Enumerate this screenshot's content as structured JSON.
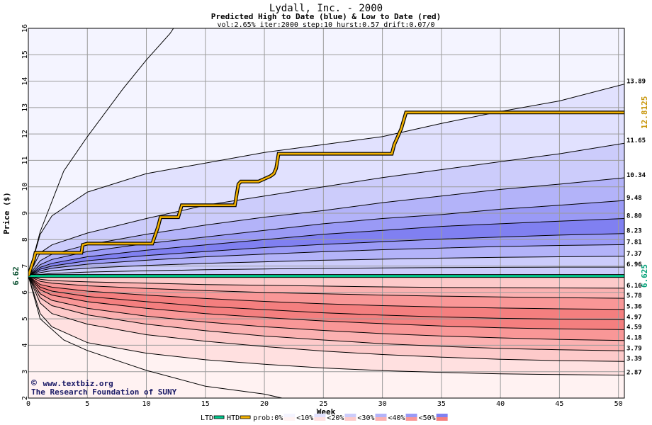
{
  "chart_data": {
    "type": "area",
    "title": "Lydall, Inc. - 2000",
    "subtitle": "Predicted High to Date (blue) &  Low to Date (red)",
    "params": "vol:2.65% iter:2000 step:10 hurst:0.57 drift:0.07/0",
    "xlabel": "Week",
    "ylabel": "Price ($)",
    "xlim": [
      0,
      50.5
    ],
    "ylim": [
      2,
      16
    ],
    "x_ticks": [
      0,
      5,
      10,
      15,
      20,
      25,
      30,
      35,
      40,
      45,
      50
    ],
    "y_ticks": [
      2,
      3,
      4,
      5,
      6,
      7,
      8,
      9,
      10,
      11,
      12,
      13,
      14,
      15,
      16
    ],
    "start_price": 6.625,
    "start_label": "6.62",
    "colors": {
      "high_bands": [
        "#f4f4ff",
        "#e1e1fe",
        "#ccccfb",
        "#b3b3f9",
        "#9a9af6",
        "#8080f1"
      ],
      "low_bands": [
        "#fff2f2",
        "#ffe0e0",
        "#fdcaca",
        "#fbb1b1",
        "#f99797",
        "#f47f7f"
      ],
      "ltd_line": "#00c88c",
      "htd_line": "#f2b100",
      "grid": "#9b9b9b",
      "credit": "#1a1a66"
    },
    "high_curves": [
      {
        "label": "13.89",
        "points": [
          [
            0,
            6.625
          ],
          [
            1,
            8.2
          ],
          [
            2,
            8.9
          ],
          [
            5,
            9.8
          ],
          [
            10,
            10.5
          ],
          [
            15,
            10.9
          ],
          [
            20,
            11.3
          ],
          [
            25,
            11.6
          ],
          [
            30,
            11.9
          ],
          [
            35,
            12.4
          ],
          [
            40,
            12.85
          ],
          [
            45,
            13.25
          ],
          [
            50.5,
            13.89
          ]
        ]
      },
      {
        "label": "11.65",
        "points": [
          [
            0,
            6.625
          ],
          [
            1,
            7.5
          ],
          [
            2,
            7.8
          ],
          [
            5,
            8.25
          ],
          [
            10,
            8.8
          ],
          [
            15,
            9.3
          ],
          [
            20,
            9.65
          ],
          [
            25,
            10.0
          ],
          [
            30,
            10.35
          ],
          [
            35,
            10.65
          ],
          [
            40,
            10.95
          ],
          [
            45,
            11.25
          ],
          [
            50.5,
            11.65
          ]
        ]
      },
      {
        "label": "10.34",
        "points": [
          [
            0,
            6.625
          ],
          [
            1,
            7.2
          ],
          [
            2,
            7.45
          ],
          [
            5,
            7.8
          ],
          [
            10,
            8.2
          ],
          [
            15,
            8.55
          ],
          [
            20,
            8.85
          ],
          [
            25,
            9.1
          ],
          [
            30,
            9.4
          ],
          [
            35,
            9.65
          ],
          [
            40,
            9.9
          ],
          [
            45,
            10.1
          ],
          [
            50.5,
            10.34
          ]
        ]
      },
      {
        "label": "9.48",
        "points": [
          [
            0,
            6.625
          ],
          [
            1,
            7.05
          ],
          [
            2,
            7.25
          ],
          [
            5,
            7.55
          ],
          [
            10,
            7.85
          ],
          [
            15,
            8.1
          ],
          [
            20,
            8.35
          ],
          [
            25,
            8.6
          ],
          [
            30,
            8.8
          ],
          [
            35,
            8.95
          ],
          [
            40,
            9.15
          ],
          [
            45,
            9.3
          ],
          [
            50.5,
            9.48
          ]
        ]
      },
      {
        "label": "8.80",
        "points": [
          [
            0,
            6.625
          ],
          [
            1,
            6.95
          ],
          [
            2,
            7.1
          ],
          [
            5,
            7.35
          ],
          [
            10,
            7.6
          ],
          [
            15,
            7.8
          ],
          [
            20,
            8.0
          ],
          [
            25,
            8.2
          ],
          [
            30,
            8.35
          ],
          [
            35,
            8.5
          ],
          [
            40,
            8.6
          ],
          [
            45,
            8.7
          ],
          [
            50.5,
            8.8
          ]
        ]
      },
      {
        "label": "8.23",
        "points": [
          [
            0,
            6.625
          ],
          [
            1,
            6.88
          ],
          [
            2,
            7.0
          ],
          [
            5,
            7.2
          ],
          [
            10,
            7.4
          ],
          [
            15,
            7.55
          ],
          [
            20,
            7.7
          ],
          [
            25,
            7.82
          ],
          [
            30,
            7.92
          ],
          [
            35,
            8.02
          ],
          [
            40,
            8.1
          ],
          [
            45,
            8.17
          ],
          [
            50.5,
            8.23
          ]
        ]
      },
      {
        "label": "7.81",
        "points": [
          [
            0,
            6.625
          ],
          [
            1,
            6.82
          ],
          [
            2,
            6.92
          ],
          [
            5,
            7.07
          ],
          [
            10,
            7.22
          ],
          [
            15,
            7.35
          ],
          [
            20,
            7.45
          ],
          [
            25,
            7.54
          ],
          [
            30,
            7.62
          ],
          [
            35,
            7.68
          ],
          [
            40,
            7.74
          ],
          [
            45,
            7.78
          ],
          [
            50.5,
            7.81
          ]
        ]
      },
      {
        "label": "7.37",
        "points": [
          [
            0,
            6.625
          ],
          [
            1,
            6.75
          ],
          [
            2,
            6.82
          ],
          [
            5,
            6.92
          ],
          [
            10,
            7.02
          ],
          [
            15,
            7.1
          ],
          [
            20,
            7.16
          ],
          [
            25,
            7.22
          ],
          [
            30,
            7.26
          ],
          [
            35,
            7.3
          ],
          [
            40,
            7.33
          ],
          [
            45,
            7.35
          ],
          [
            50.5,
            7.37
          ]
        ]
      },
      {
        "label": "6.96",
        "points": [
          [
            0,
            6.625
          ],
          [
            1,
            6.68
          ],
          [
            2,
            6.72
          ],
          [
            5,
            6.77
          ],
          [
            10,
            6.82
          ],
          [
            15,
            6.86
          ],
          [
            20,
            6.89
          ],
          [
            25,
            6.91
          ],
          [
            30,
            6.93
          ],
          [
            35,
            6.94
          ],
          [
            40,
            6.95
          ],
          [
            45,
            6.96
          ],
          [
            50.5,
            6.96
          ]
        ]
      }
    ],
    "low_curves": [
      {
        "label": "6.16",
        "points": [
          [
            0,
            6.625
          ],
          [
            1,
            6.5
          ],
          [
            2,
            6.45
          ],
          [
            5,
            6.4
          ],
          [
            10,
            6.35
          ],
          [
            15,
            6.3
          ],
          [
            20,
            6.27
          ],
          [
            25,
            6.24
          ],
          [
            30,
            6.21
          ],
          [
            35,
            6.19
          ],
          [
            40,
            6.18
          ],
          [
            45,
            6.17
          ],
          [
            50.5,
            6.16
          ]
        ]
      },
      {
        "label": "5.78",
        "points": [
          [
            0,
            6.625
          ],
          [
            1,
            6.42
          ],
          [
            2,
            6.35
          ],
          [
            5,
            6.25
          ],
          [
            10,
            6.15
          ],
          [
            15,
            6.07
          ],
          [
            20,
            6.0
          ],
          [
            25,
            5.95
          ],
          [
            30,
            5.9
          ],
          [
            35,
            5.86
          ],
          [
            40,
            5.83
          ],
          [
            45,
            5.8
          ],
          [
            50.5,
            5.78
          ]
        ]
      },
      {
        "label": "5.36",
        "points": [
          [
            0,
            6.625
          ],
          [
            1,
            6.3
          ],
          [
            2,
            6.2
          ],
          [
            5,
            6.05
          ],
          [
            10,
            5.9
          ],
          [
            15,
            5.77
          ],
          [
            20,
            5.66
          ],
          [
            25,
            5.57
          ],
          [
            30,
            5.5
          ],
          [
            35,
            5.45
          ],
          [
            40,
            5.41
          ],
          [
            45,
            5.38
          ],
          [
            50.5,
            5.36
          ]
        ]
      },
      {
        "label": "4.97",
        "points": [
          [
            0,
            6.625
          ],
          [
            1,
            6.2
          ],
          [
            2,
            6.05
          ],
          [
            5,
            5.85
          ],
          [
            10,
            5.65
          ],
          [
            15,
            5.47
          ],
          [
            20,
            5.35
          ],
          [
            25,
            5.23
          ],
          [
            30,
            5.14
          ],
          [
            35,
            5.07
          ],
          [
            40,
            5.02
          ],
          [
            45,
            4.99
          ],
          [
            50.5,
            4.97
          ]
        ]
      },
      {
        "label": "4.59",
        "points": [
          [
            0,
            6.625
          ],
          [
            1,
            6.1
          ],
          [
            2,
            5.9
          ],
          [
            5,
            5.65
          ],
          [
            10,
            5.4
          ],
          [
            15,
            5.2
          ],
          [
            20,
            5.05
          ],
          [
            25,
            4.92
          ],
          [
            30,
            4.82
          ],
          [
            35,
            4.73
          ],
          [
            40,
            4.66
          ],
          [
            45,
            4.62
          ],
          [
            50.5,
            4.59
          ]
        ]
      },
      {
        "label": "4.18",
        "points": [
          [
            0,
            6.625
          ],
          [
            1,
            5.95
          ],
          [
            2,
            5.7
          ],
          [
            5,
            5.4
          ],
          [
            10,
            5.1
          ],
          [
            15,
            4.88
          ],
          [
            20,
            4.7
          ],
          [
            25,
            4.56
          ],
          [
            30,
            4.44
          ],
          [
            35,
            4.35
          ],
          [
            40,
            4.28
          ],
          [
            45,
            4.22
          ],
          [
            50.5,
            4.18
          ]
        ]
      },
      {
        "label": "3.79",
        "points": [
          [
            0,
            6.625
          ],
          [
            1,
            5.8
          ],
          [
            2,
            5.5
          ],
          [
            5,
            5.15
          ],
          [
            10,
            4.8
          ],
          [
            15,
            4.55
          ],
          [
            20,
            4.35
          ],
          [
            25,
            4.2
          ],
          [
            30,
            4.06
          ],
          [
            35,
            3.96
          ],
          [
            40,
            3.88
          ],
          [
            45,
            3.83
          ],
          [
            50.5,
            3.79
          ]
        ]
      },
      {
        "label": "3.39",
        "points": [
          [
            0,
            6.625
          ],
          [
            1,
            5.6
          ],
          [
            2,
            5.2
          ],
          [
            5,
            4.8
          ],
          [
            10,
            4.4
          ],
          [
            15,
            4.15
          ],
          [
            20,
            3.95
          ],
          [
            25,
            3.78
          ],
          [
            30,
            3.65
          ],
          [
            35,
            3.55
          ],
          [
            40,
            3.47
          ],
          [
            45,
            3.42
          ],
          [
            50.5,
            3.39
          ]
        ]
      },
      {
        "label": "2.87",
        "points": [
          [
            0,
            6.625
          ],
          [
            1,
            5.2
          ],
          [
            2,
            4.7
          ],
          [
            5,
            4.1
          ],
          [
            10,
            3.7
          ],
          [
            15,
            3.45
          ],
          [
            20,
            3.28
          ],
          [
            25,
            3.14
          ],
          [
            30,
            3.04
          ],
          [
            35,
            2.97
          ],
          [
            40,
            2.92
          ],
          [
            45,
            2.89
          ],
          [
            50.5,
            2.87
          ]
        ]
      }
    ],
    "outer_high_boundary": [
      [
        0,
        6.625
      ],
      [
        1,
        8.3
      ],
      [
        3,
        10.6
      ],
      [
        5,
        11.9
      ],
      [
        8,
        13.7
      ],
      [
        10,
        14.8
      ],
      [
        12,
        15.8
      ],
      [
        12.3,
        16
      ]
    ],
    "outer_low_boundary": [
      [
        0,
        6.625
      ],
      [
        1,
        5.0
      ],
      [
        3,
        4.2
      ],
      [
        5,
        3.8
      ],
      [
        8,
        3.35
      ],
      [
        10,
        3.05
      ],
      [
        15,
        2.45
      ],
      [
        20,
        2.15
      ],
      [
        21.5,
        2.0
      ]
    ],
    "ltd_series": {
      "name": "LTD",
      "value": 6.625,
      "label": "6.625",
      "points": [
        [
          0,
          6.625
        ],
        [
          50.5,
          6.625
        ]
      ]
    },
    "htd_series": {
      "name": "HTD",
      "label": "12.8125",
      "points": [
        [
          0,
          6.625
        ],
        [
          0.5,
          7.3
        ],
        [
          0.6,
          7.5
        ],
        [
          4.5,
          7.5
        ],
        [
          4.6,
          7.8
        ],
        [
          5,
          7.85
        ],
        [
          10.5,
          7.85
        ],
        [
          11,
          8.5
        ],
        [
          11.2,
          8.85
        ],
        [
          12.7,
          8.85
        ],
        [
          13,
          9.3
        ],
        [
          17.5,
          9.3
        ],
        [
          17.8,
          10.1
        ],
        [
          18,
          10.2
        ],
        [
          19.5,
          10.2
        ],
        [
          20,
          10.3
        ],
        [
          20.5,
          10.4
        ],
        [
          20.8,
          10.5
        ],
        [
          21,
          10.7
        ],
        [
          21.2,
          11.25
        ],
        [
          30.8,
          11.25
        ],
        [
          31,
          11.6
        ],
        [
          31.3,
          11.9
        ],
        [
          31.6,
          12.2
        ],
        [
          32,
          12.8125
        ],
        [
          50.5,
          12.8125
        ]
      ]
    }
  },
  "credits": {
    "copyright_symbol": "©",
    "site": "www.textbiz.org",
    "org": "The Research Foundation of SUNY"
  },
  "legend": {
    "items": [
      {
        "label": "LTD",
        "kind": "line",
        "color": "#00c88c"
      },
      {
        "label": "HTD",
        "kind": "line",
        "color": "#f2b100"
      },
      {
        "label": "prob:0%",
        "kind": "swatch",
        "top": "#f4f4ff",
        "bottom": "#fff2f2"
      },
      {
        "label": "<10%",
        "kind": "swatch",
        "top": "#e1e1fe",
        "bottom": "#ffe0e0"
      },
      {
        "label": "<20%",
        "kind": "swatch",
        "top": "#ccccfb",
        "bottom": "#fdcaca"
      },
      {
        "label": "<30%",
        "kind": "swatch",
        "top": "#b3b3f9",
        "bottom": "#fbb1b1"
      },
      {
        "label": "<40%",
        "kind": "swatch",
        "top": "#9a9af6",
        "bottom": "#f99797"
      },
      {
        "label": "<50%",
        "kind": "swatch",
        "top": "#8080f1",
        "bottom": "#f47f7f"
      }
    ]
  }
}
